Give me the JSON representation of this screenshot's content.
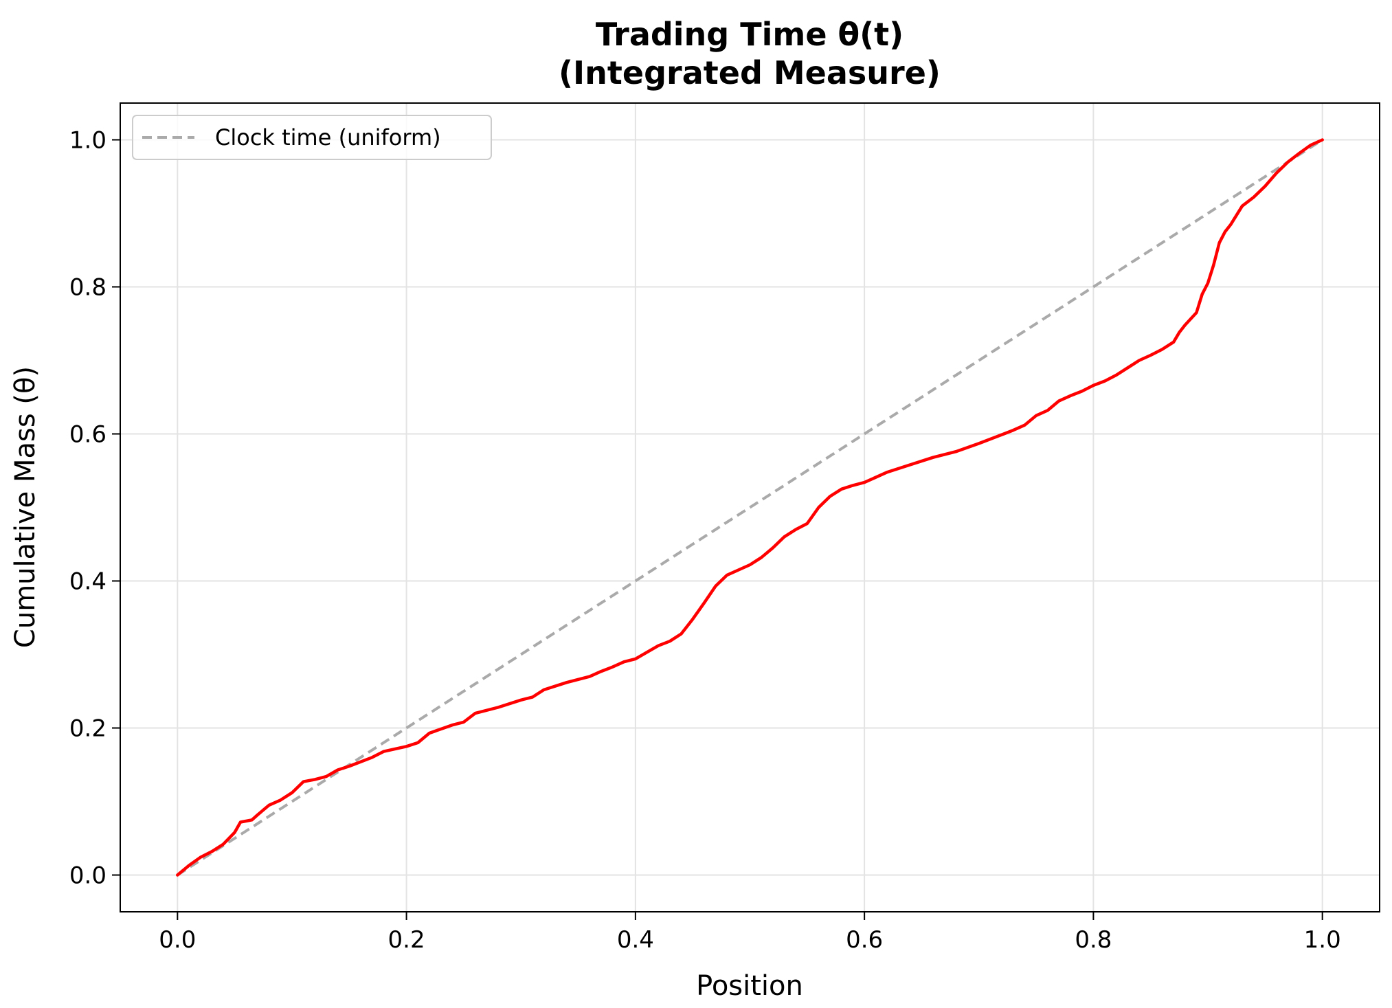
{
  "chart_data": {
    "type": "line",
    "title": "Trading Time θ(t)",
    "subtitle": "(Integrated Measure)",
    "xlabel": "Position",
    "ylabel": "Cumulative Mass (θ)",
    "xlim": [
      -0.05,
      1.05
    ],
    "ylim": [
      -0.05,
      1.05
    ],
    "xticks": [
      0.0,
      0.2,
      0.4,
      0.6,
      0.8,
      1.0
    ],
    "xtick_labels": [
      "0.0",
      "0.2",
      "0.4",
      "0.6",
      "0.8",
      "1.0"
    ],
    "yticks": [
      0.0,
      0.2,
      0.4,
      0.6,
      0.8,
      1.0
    ],
    "ytick_labels": [
      "0.0",
      "0.2",
      "0.4",
      "0.6",
      "0.8",
      "1.0"
    ],
    "grid": true,
    "legend_position": "top-left",
    "series": [
      {
        "name": "Clock time (uniform)",
        "style": "dashed",
        "color": "#aaaaaa",
        "x": [
          0.0,
          1.0
        ],
        "y": [
          0.0,
          1.0
        ]
      },
      {
        "style": "solid",
        "color": "#ff0000",
        "x": [
          0.0,
          0.01,
          0.02,
          0.03,
          0.04,
          0.05,
          0.055,
          0.065,
          0.07,
          0.08,
          0.09,
          0.1,
          0.11,
          0.12,
          0.13,
          0.14,
          0.15,
          0.17,
          0.18,
          0.2,
          0.21,
          0.22,
          0.24,
          0.25,
          0.26,
          0.28,
          0.3,
          0.31,
          0.32,
          0.34,
          0.36,
          0.37,
          0.38,
          0.39,
          0.4,
          0.41,
          0.42,
          0.43,
          0.44,
          0.45,
          0.46,
          0.47,
          0.48,
          0.49,
          0.5,
          0.51,
          0.52,
          0.53,
          0.54,
          0.55,
          0.56,
          0.57,
          0.58,
          0.59,
          0.6,
          0.62,
          0.64,
          0.66,
          0.68,
          0.7,
          0.72,
          0.73,
          0.74,
          0.75,
          0.76,
          0.77,
          0.78,
          0.79,
          0.8,
          0.81,
          0.82,
          0.83,
          0.84,
          0.85,
          0.86,
          0.87,
          0.875,
          0.88,
          0.89,
          0.895,
          0.9,
          0.905,
          0.91,
          0.915,
          0.92,
          0.93,
          0.94,
          0.95,
          0.96,
          0.97,
          0.98,
          0.99,
          1.0
        ],
        "y": [
          0.0,
          0.013,
          0.024,
          0.032,
          0.042,
          0.058,
          0.072,
          0.075,
          0.082,
          0.095,
          0.102,
          0.112,
          0.127,
          0.13,
          0.134,
          0.143,
          0.148,
          0.16,
          0.168,
          0.175,
          0.18,
          0.193,
          0.204,
          0.208,
          0.22,
          0.228,
          0.238,
          0.242,
          0.252,
          0.262,
          0.27,
          0.277,
          0.283,
          0.29,
          0.294,
          0.303,
          0.312,
          0.318,
          0.328,
          0.348,
          0.37,
          0.393,
          0.408,
          0.415,
          0.422,
          0.432,
          0.445,
          0.46,
          0.47,
          0.478,
          0.5,
          0.515,
          0.525,
          0.53,
          0.534,
          0.548,
          0.558,
          0.568,
          0.576,
          0.587,
          0.599,
          0.605,
          0.612,
          0.625,
          0.632,
          0.645,
          0.652,
          0.658,
          0.666,
          0.672,
          0.68,
          0.69,
          0.7,
          0.707,
          0.715,
          0.725,
          0.738,
          0.748,
          0.765,
          0.79,
          0.805,
          0.83,
          0.86,
          0.875,
          0.885,
          0.91,
          0.922,
          0.937,
          0.955,
          0.97,
          0.982,
          0.993,
          1.0
        ]
      }
    ]
  }
}
